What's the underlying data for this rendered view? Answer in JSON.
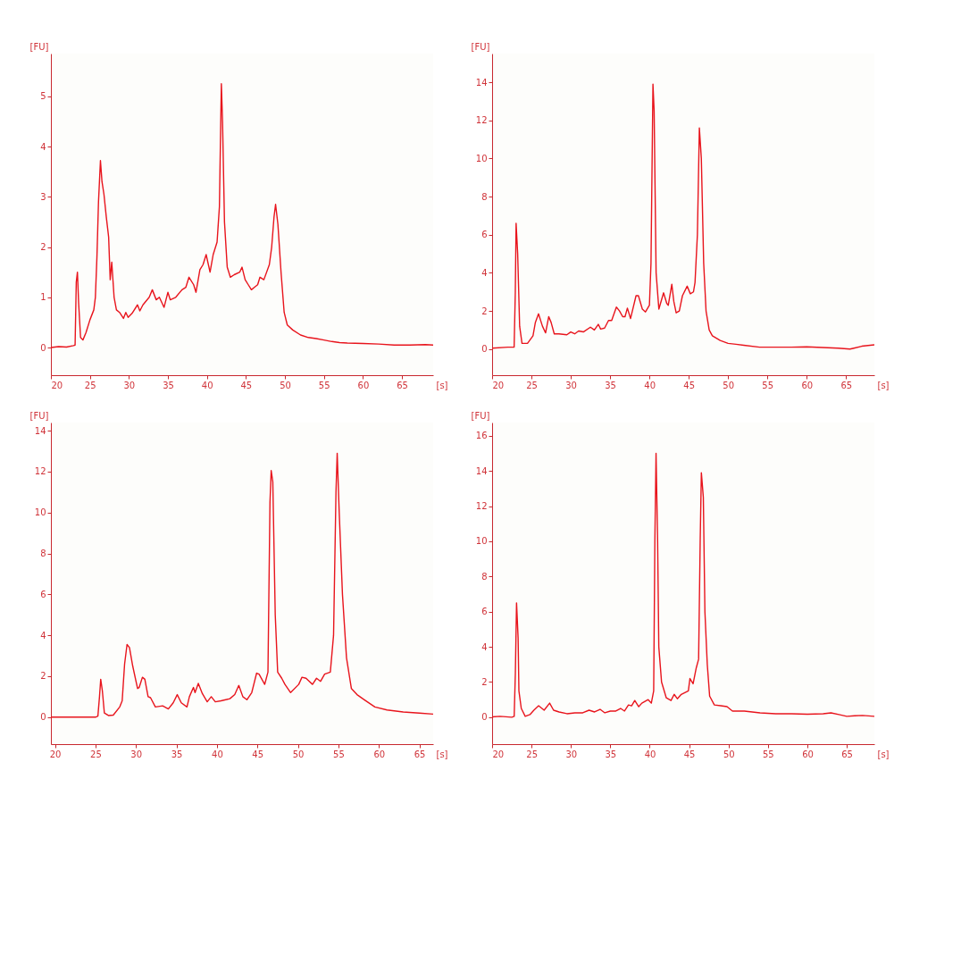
{
  "chart_data": [
    {
      "type": "line",
      "xlabel": "[s]",
      "ylabel": "[FU]",
      "xlim": [
        20,
        69
      ],
      "ylim": [
        -0.55,
        5.85
      ],
      "xticks": [
        20,
        25,
        30,
        35,
        40,
        45,
        50,
        55,
        60,
        65
      ],
      "yticks": [
        0,
        1,
        2,
        3,
        4,
        5
      ],
      "series": [
        {
          "color": "#e8141c",
          "x": [
            20,
            21,
            22,
            22.9,
            23.1,
            23.25,
            23.4,
            23.55,
            23.8,
            24.1,
            24.5,
            25,
            25.5,
            25.7,
            25.9,
            26.1,
            26.35,
            26.55,
            26.8,
            27.1,
            27.4,
            27.6,
            27.8,
            28.1,
            28.4,
            28.8,
            29.3,
            29.6,
            29.9,
            30.4,
            31.1,
            31.4,
            31.8,
            32.6,
            33,
            33.5,
            33.9,
            34.5,
            35,
            35.3,
            36,
            36.8,
            37.3,
            37.7,
            38.3,
            38.6,
            39.1,
            39.5,
            39.9,
            40.4,
            40.8,
            41.3,
            41.6,
            41.75,
            41.85,
            42,
            42.25,
            42.6,
            43,
            43.5,
            44.2,
            44.5,
            44.9,
            45.3,
            45.7,
            46.1,
            46.5,
            46.8,
            47.3,
            48,
            48.3,
            48.6,
            48.8,
            49.1,
            49.5,
            49.9,
            50.3,
            51,
            52,
            53,
            54,
            55,
            56,
            57,
            58,
            60,
            62,
            64,
            66,
            68,
            69
          ],
          "values": [
            0,
            0.02,
            0.01,
            0.04,
            0.05,
            1.3,
            1.5,
            0.9,
            0.2,
            0.15,
            0.3,
            0.55,
            0.75,
            1,
            1.8,
            2.9,
            3.72,
            3.3,
            3.05,
            2.6,
            2.2,
            1.35,
            1.7,
            1,
            0.75,
            0.7,
            0.58,
            0.7,
            0.6,
            0.68,
            0.85,
            0.73,
            0.85,
            1,
            1.15,
            0.95,
            1,
            0.8,
            1.1,
            0.95,
            1,
            1.15,
            1.2,
            1.4,
            1.25,
            1.1,
            1.55,
            1.65,
            1.85,
            1.5,
            1.85,
            2.1,
            2.8,
            4.3,
            5.25,
            4.5,
            2.5,
            1.6,
            1.4,
            1.45,
            1.5,
            1.6,
            1.35,
            1.25,
            1.15,
            1.2,
            1.25,
            1.4,
            1.35,
            1.65,
            2,
            2.6,
            2.85,
            2.45,
            1.5,
            0.7,
            0.45,
            0.35,
            0.25,
            0.2,
            0.18,
            0.15,
            0.12,
            0.1,
            0.09,
            0.08,
            0.07,
            0.05,
            0.05,
            0.06,
            0.05
          ]
        }
      ]
    },
    {
      "type": "line",
      "xlabel": "[s]",
      "ylabel": "[FU]",
      "xlim": [
        20,
        68.6
      ],
      "ylim": [
        -1.37,
        15.5
      ],
      "xticks": [
        20,
        25,
        30,
        35,
        40,
        45,
        50,
        55,
        60,
        65
      ],
      "yticks": [
        0,
        2,
        4,
        6,
        8,
        10,
        12,
        14
      ],
      "series": [
        {
          "color": "#e8141c",
          "x": [
            20,
            22,
            22.8,
            22.95,
            23.05,
            23.25,
            23.5,
            23.8,
            24.5,
            25.2,
            25.5,
            25.9,
            26.4,
            26.8,
            27.2,
            27.5,
            27.9,
            28.5,
            29.5,
            30,
            30.5,
            31,
            31.6,
            32.5,
            33,
            33.5,
            33.8,
            34.3,
            34.8,
            35.2,
            35.8,
            36.2,
            36.6,
            36.9,
            37.2,
            37.6,
            38.3,
            38.6,
            39.1,
            39.5,
            40,
            40.2,
            40.45,
            40.6,
            40.85,
            41.2,
            41.8,
            42.2,
            42.4,
            42.85,
            43.1,
            43.4,
            43.8,
            44.2,
            44.8,
            45.2,
            45.6,
            45.8,
            46.1,
            46.35,
            46.6,
            46.9,
            47.2,
            47.6,
            48,
            49,
            50,
            51,
            52,
            54,
            56,
            58,
            60,
            62,
            64,
            65.5,
            66,
            67,
            68.6
          ],
          "values": [
            0.05,
            0.1,
            0.1,
            3,
            6.6,
            5,
            1.2,
            0.3,
            0.3,
            0.7,
            1.4,
            1.85,
            1.2,
            0.85,
            1.7,
            1.4,
            0.8,
            0.8,
            0.75,
            0.9,
            0.8,
            0.95,
            0.9,
            1.15,
            1,
            1.3,
            1.05,
            1.1,
            1.5,
            1.5,
            2.2,
            2,
            1.7,
            1.7,
            2.15,
            1.6,
            2.8,
            2.8,
            2.1,
            1.95,
            2.3,
            4.5,
            13.9,
            12.5,
            4,
            2.1,
            2.95,
            2.4,
            2.3,
            3.4,
            2.5,
            1.9,
            2,
            2.8,
            3.3,
            2.9,
            3,
            3.5,
            6,
            11.6,
            10,
            4.5,
            2,
            1,
            0.7,
            0.45,
            0.3,
            0.25,
            0.2,
            0.1,
            0.1,
            0.1,
            0.12,
            0.08,
            0.05,
            0,
            0.05,
            0.15,
            0.22
          ]
        }
      ]
    },
    {
      "type": "line",
      "xlabel": "[s]",
      "ylabel": "[FU]",
      "xlim": [
        19.5,
        66.7
      ],
      "ylim": [
        -1.32,
        14.4
      ],
      "xticks": [
        20,
        25,
        30,
        35,
        40,
        45,
        50,
        55,
        60,
        65
      ],
      "yticks": [
        0,
        2,
        4,
        6,
        8,
        10,
        12,
        14
      ],
      "series": [
        {
          "color": "#e8141c",
          "x": [
            19.5,
            22,
            25,
            25.3,
            25.5,
            25.65,
            25.85,
            26.1,
            26.6,
            27.2,
            28,
            28.3,
            28.6,
            28.9,
            29.2,
            29.6,
            30.2,
            30.4,
            30.8,
            31.1,
            31.5,
            31.8,
            32.4,
            33.3,
            34,
            34.6,
            35.1,
            35.6,
            36.3,
            36.6,
            37.1,
            37.3,
            37.7,
            38.2,
            38.8,
            39.3,
            39.8,
            40.5,
            41.6,
            42.2,
            42.7,
            43.2,
            43.7,
            44.3,
            44.9,
            45.2,
            45.9,
            46.3,
            46.55,
            46.7,
            46.9,
            47.2,
            47.5,
            48,
            48.4,
            49.1,
            50.1,
            50.5,
            51,
            51.8,
            52.3,
            52.8,
            53.3,
            54,
            54.4,
            54.7,
            54.85,
            55.1,
            55.5,
            56,
            56.6,
            57.3,
            58.2,
            59.5,
            61,
            63,
            65,
            66.7
          ],
          "values": [
            0,
            0,
            0,
            0.05,
            1,
            1.85,
            1.3,
            0.2,
            0.08,
            0.1,
            0.5,
            0.8,
            2.6,
            3.55,
            3.4,
            2.5,
            1.4,
            1.45,
            1.95,
            1.85,
            1,
            0.95,
            0.5,
            0.55,
            0.4,
            0.7,
            1.1,
            0.7,
            0.5,
            1,
            1.45,
            1.2,
            1.65,
            1.15,
            0.75,
            1,
            0.75,
            0.8,
            0.9,
            1.1,
            1.55,
            1,
            0.85,
            1.2,
            2.15,
            2.1,
            1.6,
            2.2,
            10.5,
            12.05,
            11.5,
            5,
            2.2,
            1.9,
            1.6,
            1.2,
            1.6,
            1.95,
            1.9,
            1.6,
            1.9,
            1.75,
            2.1,
            2.2,
            4,
            11,
            12.9,
            10,
            6,
            2.9,
            1.4,
            1.1,
            0.85,
            0.5,
            0.35,
            0.25,
            0.2,
            0.15
          ]
        }
      ]
    },
    {
      "type": "line",
      "xlabel": "[s]",
      "ylabel": "[FU]",
      "xlim": [
        20,
        68.5
      ],
      "ylim": [
        -1.53,
        16.75
      ],
      "xticks": [
        20,
        25,
        30,
        35,
        40,
        45,
        50,
        55,
        60,
        65
      ],
      "yticks": [
        0,
        2,
        4,
        6,
        8,
        10,
        12,
        14,
        16
      ],
      "series": [
        {
          "color": "#e8141c",
          "x": [
            20,
            21,
            22.5,
            22.8,
            22.95,
            23.1,
            23.3,
            23.4,
            23.7,
            24.2,
            24.8,
            25.3,
            25.9,
            26.6,
            27.3,
            27.8,
            28.5,
            29.5,
            30.5,
            31.5,
            32.3,
            33,
            33.7,
            34.3,
            35,
            35.7,
            36.3,
            36.8,
            37.3,
            37.7,
            38.1,
            38.6,
            39,
            39.8,
            40.2,
            40.5,
            40.65,
            40.8,
            41,
            41.15,
            41.5,
            42.1,
            42.7,
            43.1,
            43.5,
            44,
            44.9,
            45.1,
            45.5,
            45.9,
            46.2,
            46.4,
            46.55,
            46.8,
            47,
            47.3,
            47.6,
            48.2,
            49,
            49.8,
            50.5,
            52,
            54,
            56,
            58,
            60,
            62,
            63,
            64,
            65,
            66,
            67,
            68.5
          ],
          "values": [
            0.02,
            0.05,
            0,
            0.05,
            2.5,
            6.5,
            4.5,
            1.5,
            0.5,
            0.05,
            0.15,
            0.4,
            0.65,
            0.4,
            0.8,
            0.4,
            0.3,
            0.2,
            0.25,
            0.25,
            0.4,
            0.3,
            0.45,
            0.25,
            0.35,
            0.35,
            0.5,
            0.35,
            0.7,
            0.65,
            0.95,
            0.6,
            0.8,
            1,
            0.8,
            1.5,
            10,
            15,
            10,
            4,
            2,
            1.1,
            0.95,
            1.3,
            1.05,
            1.3,
            1.5,
            2.2,
            1.9,
            2.8,
            3.3,
            10,
            13.9,
            12.5,
            6,
            3,
            1.2,
            0.7,
            0.65,
            0.6,
            0.35,
            0.35,
            0.25,
            0.2,
            0.2,
            0.17,
            0.2,
            0.25,
            0.15,
            0.05,
            0.08,
            0.1,
            0.05
          ]
        }
      ]
    }
  ]
}
